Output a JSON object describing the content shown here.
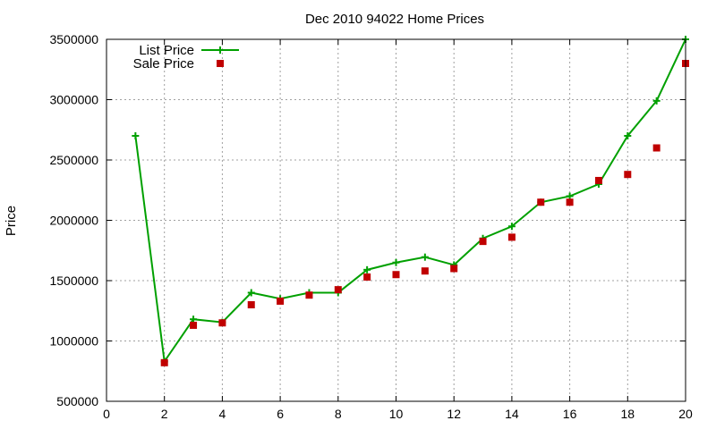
{
  "chart_data": {
    "type": "line",
    "title": "Dec 2010 94022 Home Prices",
    "xlabel": "",
    "ylabel": "Price",
    "xlim": [
      0,
      20
    ],
    "ylim": [
      500000,
      3500000
    ],
    "x_ticks": [
      "0",
      "2",
      "4",
      "6",
      "8",
      "10",
      "12",
      "14",
      "16",
      "18",
      "20"
    ],
    "y_ticks": [
      "500000",
      "1000000",
      "1500000",
      "2000000",
      "2500000",
      "3000000",
      "3500000"
    ],
    "grid": true,
    "legend_position": "top-left",
    "series": [
      {
        "name": "List Price",
        "style": "line-with-plus-markers",
        "color": "#00a000",
        "x": [
          1,
          2,
          3,
          4,
          5,
          6,
          7,
          8,
          9,
          10,
          11,
          12,
          13,
          14,
          15,
          16,
          17,
          18,
          19,
          20
        ],
        "y": [
          2700000,
          830000,
          1180000,
          1155000,
          1400000,
          1350000,
          1400000,
          1400000,
          1590000,
          1650000,
          1695000,
          1630000,
          1850000,
          1950000,
          2150000,
          2200000,
          2300000,
          2700000,
          2990000,
          3500000
        ]
      },
      {
        "name": "Sale Price",
        "style": "square-points",
        "color": "#c00000",
        "x": [
          2,
          3,
          4,
          5,
          6,
          7,
          8,
          9,
          10,
          11,
          12,
          13,
          14,
          15,
          16,
          17,
          18,
          19,
          20
        ],
        "y": [
          820000,
          1130000,
          1150000,
          1300000,
          1330000,
          1380000,
          1425000,
          1530000,
          1550000,
          1580000,
          1600000,
          1825000,
          1860000,
          2150000,
          2150000,
          2330000,
          2380000,
          2600000,
          3300000
        ]
      }
    ]
  }
}
